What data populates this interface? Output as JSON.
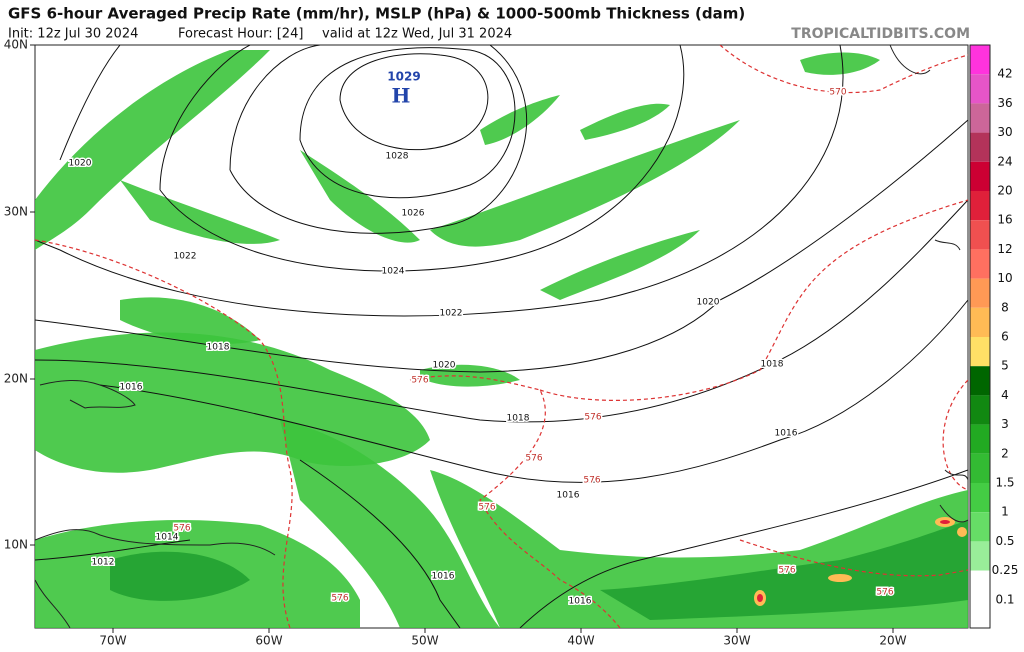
{
  "header": {
    "title": "GFS 6-hour Averaged Precip Rate (mm/hr), MSLP (hPa) & 1000-500mb Thickness (dam)",
    "init": "Init: 12z Jul 30 2024",
    "forecast_hour": "Forecast Hour: [24]",
    "valid": "valid at 12z Wed, Jul 31 2024",
    "site": "TROPICALTIDBITS.COM"
  },
  "map": {
    "lat_labels": [
      "40N",
      "30N",
      "20N",
      "10N"
    ],
    "lon_labels": [
      "70W",
      "60W",
      "50W",
      "40W",
      "30W",
      "20W"
    ]
  },
  "pressure_center": {
    "value": "1029",
    "symbol": "H"
  },
  "isobar_labels": [
    "1020",
    "1022",
    "1028",
    "1026",
    "1024",
    "1022",
    "1020",
    "1020",
    "1018",
    "1016",
    "1018",
    "1018",
    "1016",
    "1016",
    "1016",
    "1016",
    "1014",
    "1012"
  ],
  "thickness_labels": [
    "570",
    "576",
    "576",
    "576",
    "576",
    "576",
    "576",
    "576",
    "576",
    "576"
  ],
  "colorbar": {
    "levels": [
      {
        "label": "42",
        "color": "#ff33dd"
      },
      {
        "label": "36",
        "color": "#e655c8"
      },
      {
        "label": "30",
        "color": "#cc6699"
      },
      {
        "label": "24",
        "color": "#b3335a"
      },
      {
        "label": "20",
        "color": "#cc0033"
      },
      {
        "label": "16",
        "color": "#e0203a"
      },
      {
        "label": "12",
        "color": "#f05050"
      },
      {
        "label": "10",
        "color": "#ff7060"
      },
      {
        "label": "8",
        "color": "#ff9955"
      },
      {
        "label": "6",
        "color": "#ffbb55"
      },
      {
        "label": "5",
        "color": "#ffe066"
      },
      {
        "label": "4",
        "color": "#006600"
      },
      {
        "label": "3",
        "color": "#118811"
      },
      {
        "label": "2",
        "color": "#22aa22"
      },
      {
        "label": "1.5",
        "color": "#33bb33"
      },
      {
        "label": "1",
        "color": "#44cc44"
      },
      {
        "label": "0.5",
        "color": "#66dd66"
      },
      {
        "label": "0.25",
        "color": "#99ee99"
      },
      {
        "label": "0.1",
        "color": "#ffffff"
      }
    ]
  }
}
